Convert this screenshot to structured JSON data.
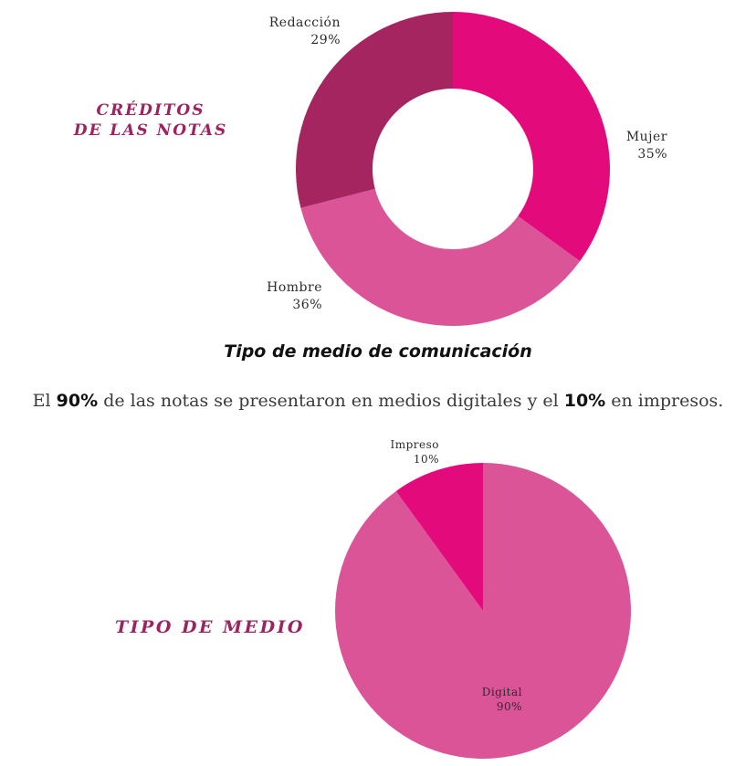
{
  "colors": {
    "title": "#9c2360",
    "mujer": "#e30b7b",
    "hombre": "#dc5498",
    "redaccion": "#a42560",
    "digital": "#dc5498",
    "impreso": "#e30b7b"
  },
  "section_heading": "Tipo de medio de comunicación",
  "paragraph": {
    "part1": "El ",
    "bold1": "90%",
    "part2": " de las notas se presentaron en medios digitales y el ",
    "bold2": "10%",
    "part3": " en impresos."
  },
  "chart_data": [
    {
      "type": "pie",
      "variant": "donut",
      "title": "CRÉDITOS DE LAS NOTAS",
      "title_lines": [
        "CRÉDITOS",
        "DE LAS NOTAS"
      ],
      "slices": [
        {
          "label": "Mujer",
          "value": 35,
          "display": "35%",
          "color": "#e30b7b"
        },
        {
          "label": "Hombre",
          "value": 36,
          "display": "36%",
          "color": "#dc5498"
        },
        {
          "label": "Redacción",
          "value": 29,
          "display": "29%",
          "color": "#a42560"
        }
      ]
    },
    {
      "type": "pie",
      "title": "TIPO DE MEDIO",
      "slices": [
        {
          "label": "Digital",
          "value": 90,
          "display": "90%",
          "color": "#dc5498"
        },
        {
          "label": "Impreso",
          "value": 10,
          "display": "10%",
          "color": "#e30b7b"
        }
      ]
    }
  ]
}
